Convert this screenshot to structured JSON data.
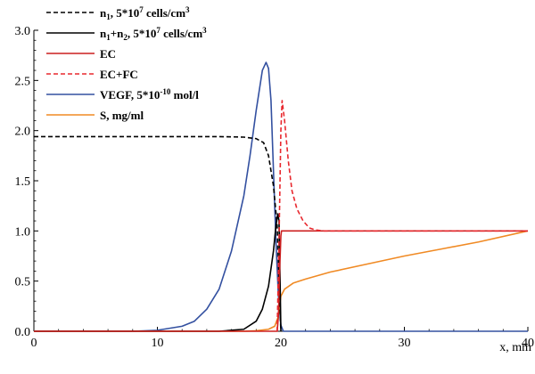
{
  "chart_data": {
    "type": "line",
    "title": "",
    "xlabel": "x, mm",
    "ylabel": "",
    "xlim": [
      0,
      40
    ],
    "ylim": [
      0,
      3
    ],
    "x_ticks": [
      0,
      10,
      20,
      30,
      40
    ],
    "y_ticks": [
      0.0,
      0.5,
      1.0,
      1.5,
      2.0,
      2.5,
      3.0
    ],
    "x_tick_labels": [
      "0",
      "10",
      "20",
      "30",
      "40"
    ],
    "y_tick_labels": [
      "0.0",
      "0.5",
      "1.0",
      "1.5",
      "2.0",
      "2.5",
      "3.0"
    ],
    "grid": false,
    "legend_position": "top-left",
    "series": [
      {
        "key": "n1",
        "legend": {
          "base": "n",
          "sub": "1",
          "mid": ", 5*10",
          "sup": "7",
          "tail": " cells/cm",
          "sup2": "3"
        },
        "color": "#000000",
        "dash": true,
        "x": [
          0,
          5,
          10,
          15,
          17,
          18,
          18.6,
          19,
          19.4,
          19.7,
          19.85,
          20
        ],
        "y": [
          1.94,
          1.94,
          1.94,
          1.94,
          1.935,
          1.92,
          1.88,
          1.75,
          1.45,
          1.05,
          0.5,
          0
        ]
      },
      {
        "key": "n1n2",
        "legend": {
          "base": "n",
          "sub": "1",
          "mid": "+n",
          "sub2": "2",
          "mid2": ", 5*10",
          "sup": "7",
          "tail": " cells/cm",
          "sup2": "3"
        },
        "color": "#000000",
        "dash": false,
        "x": [
          0,
          15,
          17,
          18,
          18.5,
          19,
          19.4,
          19.6,
          19.75,
          19.85,
          19.95,
          20
        ],
        "y": [
          0,
          0,
          0.02,
          0.1,
          0.22,
          0.45,
          0.8,
          1.05,
          1.17,
          1.1,
          0.4,
          0
        ]
      },
      {
        "key": "ec",
        "legend": {
          "base": "EC"
        },
        "color": "#cc1f1f",
        "dash": false,
        "x": [
          0,
          19.7,
          19.8,
          19.9,
          20.0,
          20.05,
          40
        ],
        "y": [
          0,
          0,
          0.15,
          0.6,
          0.95,
          1.0,
          1.0
        ]
      },
      {
        "key": "ecfc",
        "legend": {
          "base": "EC+FC"
        },
        "color": "#e8282e",
        "dash": true,
        "x": [
          19.7,
          19.85,
          20,
          20.1,
          20.3,
          20.6,
          20.9,
          21.3,
          21.8,
          22.3,
          22.8,
          23.5,
          24.5,
          40
        ],
        "y": [
          0,
          0.9,
          2.0,
          2.3,
          2.1,
          1.7,
          1.4,
          1.22,
          1.1,
          1.03,
          1.01,
          1.0,
          1.0,
          1.0
        ]
      },
      {
        "key": "vegf",
        "legend": {
          "base": "VEGF",
          "mid": ", 5*10",
          "sup": "-10",
          "tail": " mol/l"
        },
        "color": "#3350a0",
        "dash": false,
        "x": [
          0,
          8,
          10,
          12,
          13,
          14,
          15,
          16,
          17,
          17.5,
          18,
          18.5,
          18.8,
          19,
          19.2,
          19.4,
          19.6,
          19.8,
          20,
          20.2,
          40
        ],
        "y": [
          0,
          0,
          0.01,
          0.05,
          0.1,
          0.22,
          0.42,
          0.8,
          1.35,
          1.75,
          2.2,
          2.6,
          2.68,
          2.62,
          2.3,
          1.6,
          0.9,
          0.35,
          0.06,
          0,
          0
        ]
      },
      {
        "key": "s",
        "legend": {
          "base": "S, mg/ml"
        },
        "color": "#f08a24",
        "dash": false,
        "x": [
          0,
          17,
          18,
          19,
          19.5,
          19.8,
          20,
          20.3,
          21,
          22,
          24,
          27,
          30,
          33,
          36,
          40
        ],
        "y": [
          0,
          0,
          0.005,
          0.02,
          0.05,
          0.15,
          0.35,
          0.42,
          0.48,
          0.52,
          0.59,
          0.67,
          0.75,
          0.82,
          0.89,
          1.0
        ]
      }
    ]
  }
}
